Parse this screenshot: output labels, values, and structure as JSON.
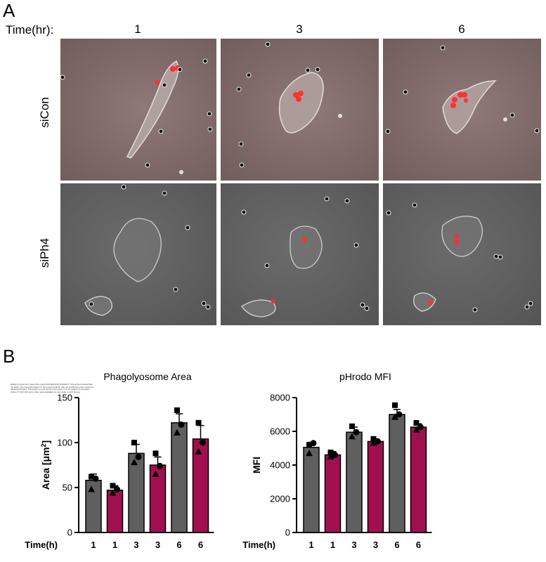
{
  "panel_a": {
    "letter": "A",
    "time_label": "Time(hr):",
    "columns": [
      "1",
      "3",
      "6"
    ],
    "rows": [
      {
        "label": "siCon",
        "tint": "#7e6968"
      },
      {
        "label": "siPh4",
        "tint": "#5e5e5e"
      }
    ]
  },
  "panel_b": {
    "letter": "B",
    "fine_print": "bioRxiv preprint doi: https://doi.org/10.1101/2023.05.10.540277; this version posted May 10, 2023. The copyright holder for this preprint (which was not certified by peer review) is the author/funder. This article is a US Government work. It is not subject to copyright under 17 USC 105 and is also made available for use under a CC0 license."
  },
  "colors": {
    "control": "#5f5f5f",
    "knockdown": "#a1104e",
    "bead_red": "#ff3030"
  },
  "chart_data": [
    {
      "type": "bar",
      "title": "Phagolyosome Area",
      "ylabel_main": "Area [μm",
      "ylabel_sup": "2",
      "ylabel_end": "]",
      "xlabel": "Time(h)",
      "categories": [
        "1",
        "1",
        "3",
        "3",
        "6",
        "6"
      ],
      "groups": [
        "siCon",
        "siPh4",
        "siCon",
        "siPh4",
        "siCon",
        "siPh4"
      ],
      "values": [
        58,
        47,
        88,
        75,
        122,
        104
      ],
      "errors": [
        7,
        5,
        10,
        9,
        10,
        15
      ],
      "points": [
        [
          62,
          60,
          48
        ],
        [
          52,
          48,
          44
        ],
        [
          100,
          84,
          78
        ],
        [
          88,
          74,
          65
        ],
        [
          136,
          120,
          111
        ],
        [
          122,
          100,
          90
        ]
      ],
      "ylim": [
        0,
        150
      ],
      "yticks": [
        0,
        50,
        100,
        150
      ]
    },
    {
      "type": "bar",
      "title": "pHrodo MFI",
      "ylabel_main": "MFI",
      "xlabel": "Time(h)",
      "categories": [
        "1",
        "1",
        "3",
        "3",
        "6",
        "6"
      ],
      "groups": [
        "siCon",
        "siPh4",
        "siCon",
        "siPh4",
        "siCon",
        "siPh4"
      ],
      "values": [
        5050,
        4600,
        5950,
        5400,
        7000,
        6250
      ],
      "errors": [
        300,
        200,
        300,
        150,
        300,
        200
      ],
      "points": [
        [
          5200,
          5300,
          4700
        ],
        [
          4750,
          4600,
          4500
        ],
        [
          6300,
          5950,
          5700
        ],
        [
          5550,
          5400,
          5300
        ],
        [
          7550,
          7000,
          6850
        ],
        [
          6500,
          6250,
          6100
        ]
      ],
      "ylim": [
        0,
        8000
      ],
      "yticks": [
        0,
        2000,
        4000,
        6000,
        8000
      ]
    }
  ]
}
